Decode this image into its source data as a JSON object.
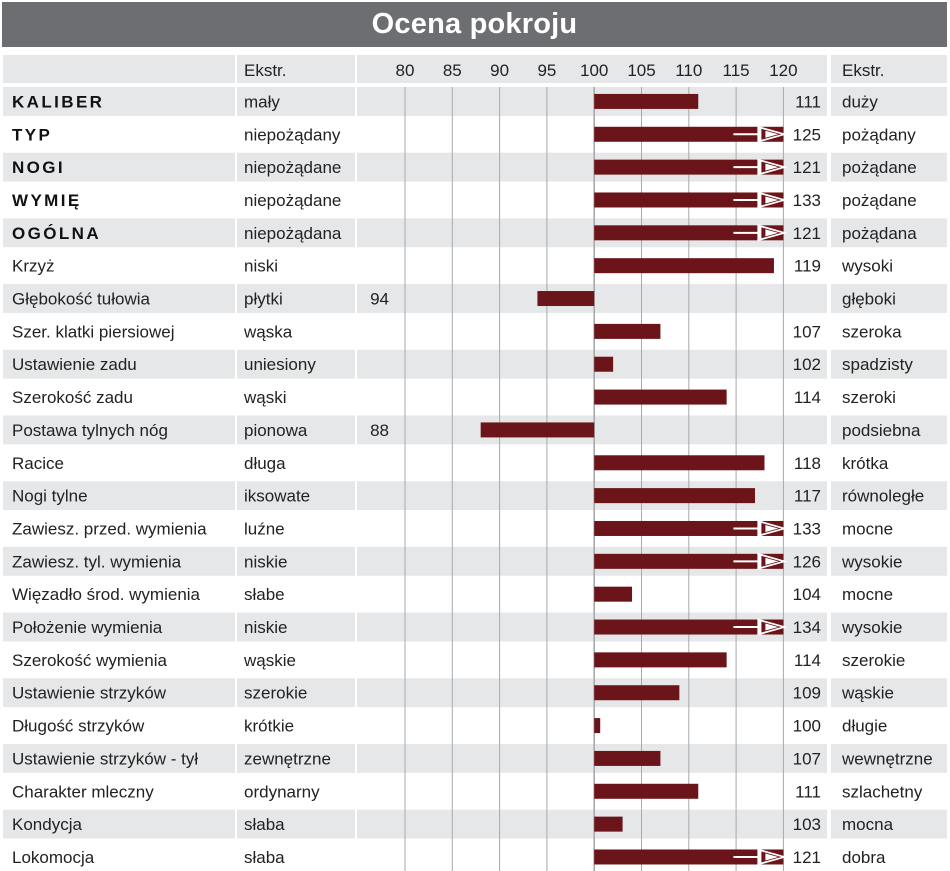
{
  "title": "Ocena pokroju",
  "colors": {
    "bar": "#6b1419",
    "title_bg": "#6d6e71",
    "row_alt": "#e6e7e8",
    "grid": "#a7a9ac"
  },
  "header": {
    "extr_left": "Ekstr.",
    "extr_right": "Ekstr."
  },
  "chart_data": {
    "type": "bar",
    "orientation": "horizontal",
    "baseline": 100,
    "xlim": [
      80,
      120
    ],
    "x_ticks": [
      "80",
      "85",
      "90",
      "95",
      "100",
      "105",
      "110",
      "115",
      "120"
    ],
    "grid": true,
    "rows": [
      {
        "trait": "KALIBER",
        "bold": true,
        "low": "mały",
        "value": 111,
        "value_label": "111",
        "high": "duży",
        "overflow": false
      },
      {
        "trait": "TYP",
        "bold": true,
        "low": "niepożądany",
        "value": 125,
        "value_label": "125",
        "high": "pożądany",
        "overflow": true
      },
      {
        "trait": "NOGI",
        "bold": true,
        "low": "niepożądane",
        "value": 121,
        "value_label": "121",
        "high": "pożądane",
        "overflow": true
      },
      {
        "trait": "WYMIĘ",
        "bold": true,
        "low": "niepożądane",
        "value": 133,
        "value_label": "133",
        "high": "pożądane",
        "overflow": true
      },
      {
        "trait": "OGÓLNA",
        "bold": true,
        "low": "niepożądana",
        "value": 121,
        "value_label": "121",
        "high": "pożądana",
        "overflow": true
      },
      {
        "trait": "Krzyż",
        "bold": false,
        "low": "niski",
        "value": 119,
        "value_label": "119",
        "high": "wysoki",
        "overflow": false
      },
      {
        "trait": "Głębokość tułowia",
        "bold": false,
        "low": "płytki",
        "value": 94,
        "value_label": "94",
        "high": "głęboki",
        "overflow": false
      },
      {
        "trait": "Szer. klatki piersiowej",
        "bold": false,
        "low": "wąska",
        "value": 107,
        "value_label": "107",
        "high": "szeroka",
        "overflow": false
      },
      {
        "trait": "Ustawienie zadu",
        "bold": false,
        "low": "uniesiony",
        "value": 102,
        "value_label": "102",
        "high": "spadzisty",
        "overflow": false
      },
      {
        "trait": "Szerokość zadu",
        "bold": false,
        "low": "wąski",
        "value": 114,
        "value_label": "114",
        "high": "szeroki",
        "overflow": false
      },
      {
        "trait": "Postawa tylnych nóg",
        "bold": false,
        "low": "pionowa",
        "value": 88,
        "value_label": "88",
        "high": "podsiebna",
        "overflow": false
      },
      {
        "trait": "Racice",
        "bold": false,
        "low": "długa",
        "value": 118,
        "value_label": "118",
        "high": "krótka",
        "overflow": false
      },
      {
        "trait": "Nogi tylne",
        "bold": false,
        "low": "iksowate",
        "value": 117,
        "value_label": "117",
        "high": "równoległe",
        "overflow": false
      },
      {
        "trait": "Zawiesz. przed. wymienia",
        "bold": false,
        "low": "luźne",
        "value": 133,
        "value_label": "133",
        "high": "mocne",
        "overflow": true
      },
      {
        "trait": "Zawiesz. tyl. wymienia",
        "bold": false,
        "low": "niskie",
        "value": 126,
        "value_label": "126",
        "high": "wysokie",
        "overflow": true
      },
      {
        "trait": "Więzadło środ. wymienia",
        "bold": false,
        "low": "słabe",
        "value": 104,
        "value_label": "104",
        "high": "mocne",
        "overflow": false
      },
      {
        "trait": "Położenie wymienia",
        "bold": false,
        "low": "niskie",
        "value": 134,
        "value_label": "134",
        "high": "wysokie",
        "overflow": true
      },
      {
        "trait": "Szerokość wymienia",
        "bold": false,
        "low": "wąskie",
        "value": 114,
        "value_label": "114",
        "high": "szerokie",
        "overflow": false
      },
      {
        "trait": "Ustawienie strzyków",
        "bold": false,
        "low": "szerokie",
        "value": 109,
        "value_label": "109",
        "high": "wąskie",
        "overflow": false
      },
      {
        "trait": "Długość strzyków",
        "bold": false,
        "low": "krótkie",
        "value": 100,
        "value_label": "100",
        "high": "długie",
        "overflow": false
      },
      {
        "trait": "Ustawienie strzyków - tył",
        "bold": false,
        "low": "zewnętrzne",
        "value": 107,
        "value_label": "107",
        "high": "wewnętrzne",
        "overflow": false
      },
      {
        "trait": "Charakter mleczny",
        "bold": false,
        "low": "ordynarny",
        "value": 111,
        "value_label": "111",
        "high": "szlachetny",
        "overflow": false
      },
      {
        "trait": "Kondycja",
        "bold": false,
        "low": "słaba",
        "value": 103,
        "value_label": "103",
        "high": "mocna",
        "overflow": false
      },
      {
        "trait": "Lokomocja",
        "bold": false,
        "low": "słaba",
        "value": 121,
        "value_label": "121",
        "high": "dobra",
        "overflow": true
      }
    ]
  }
}
